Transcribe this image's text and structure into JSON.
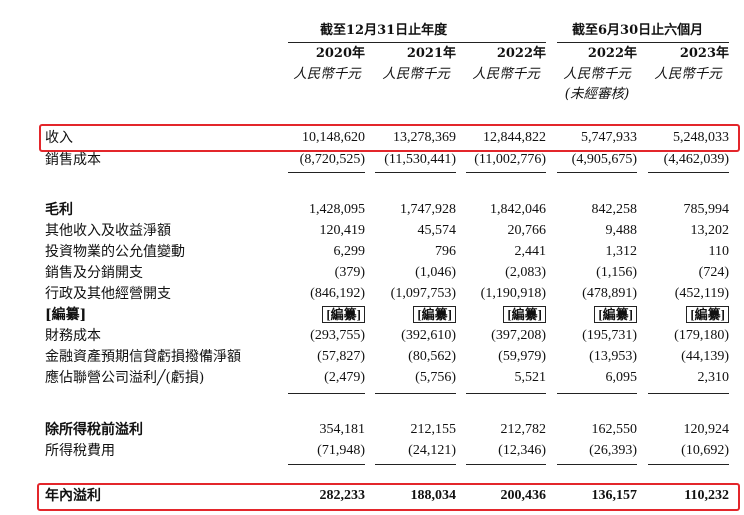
{
  "header": {
    "group_year": "截至12月31日止年度",
    "group_half": "截至6月30日止六個月",
    "columns": [
      {
        "year": "2020年",
        "unit": "人民幣千元",
        "note": ""
      },
      {
        "year": "2021年",
        "unit": "人民幣千元",
        "note": ""
      },
      {
        "year": "2022年",
        "unit": "人民幣千元",
        "note": ""
      },
      {
        "year": "2022年",
        "unit": "人民幣千元",
        "note": "(未經審核)"
      },
      {
        "year": "2023年",
        "unit": "人民幣千元",
        "note": ""
      }
    ]
  },
  "rows": [
    {
      "label": "收入",
      "values": [
        "10,148,620",
        "13,278,369",
        "12,844,822",
        "5,747,933",
        "5,248,033"
      ]
    },
    {
      "label": "銷售成本",
      "values": [
        "(8,720,525)",
        "(11,530,441)",
        "(11,002,776)",
        "(4,905,675)",
        "(4,462,039)"
      ]
    },
    {
      "label": "毛利",
      "values": [
        "1,428,095",
        "1,747,928",
        "1,842,046",
        "842,258",
        "785,994"
      ]
    },
    {
      "label": "其他收入及收益淨額",
      "values": [
        "120,419",
        "45,574",
        "20,766",
        "9,488",
        "13,202"
      ]
    },
    {
      "label": "投資物業的公允值變動",
      "values": [
        "6,299",
        "796",
        "2,441",
        "1,312",
        "110"
      ]
    },
    {
      "label": "銷售及分銷開支",
      "values": [
        "(379)",
        "(1,046)",
        "(2,083)",
        "(1,156)",
        "(724)"
      ]
    },
    {
      "label": "行政及其他經營開支",
      "values": [
        "(846,192)",
        "(1,097,753)",
        "(1,190,918)",
        "(478,891)",
        "(452,119)"
      ]
    },
    {
      "label": "[編纂]",
      "values": [
        "[編纂]",
        "[編纂]",
        "[編纂]",
        "[編纂]",
        "[編纂]"
      ]
    },
    {
      "label": "財務成本",
      "values": [
        "(293,755)",
        "(392,610)",
        "(397,208)",
        "(195,731)",
        "(179,180)"
      ]
    },
    {
      "label": "金融資產預期信貸虧損撥備淨額",
      "values": [
        "(57,827)",
        "(80,562)",
        "(59,979)",
        "(13,953)",
        "(44,139)"
      ]
    },
    {
      "label": "應佔聯營公司溢利╱(虧損)",
      "values": [
        "(2,479)",
        "(5,756)",
        "5,521",
        "6,095",
        "2,310"
      ]
    },
    {
      "label": "除所得稅前溢利",
      "values": [
        "354,181",
        "212,155",
        "212,782",
        "162,550",
        "120,924"
      ]
    },
    {
      "label": "所得稅費用",
      "values": [
        "(71,948)",
        "(24,121)",
        "(12,346)",
        "(26,393)",
        "(10,692)"
      ]
    },
    {
      "label": "年內溢利",
      "values": [
        "282,233",
        "188,034",
        "200,436",
        "136,157",
        "110,232"
      ]
    }
  ],
  "highlight_color": "#e3262b"
}
